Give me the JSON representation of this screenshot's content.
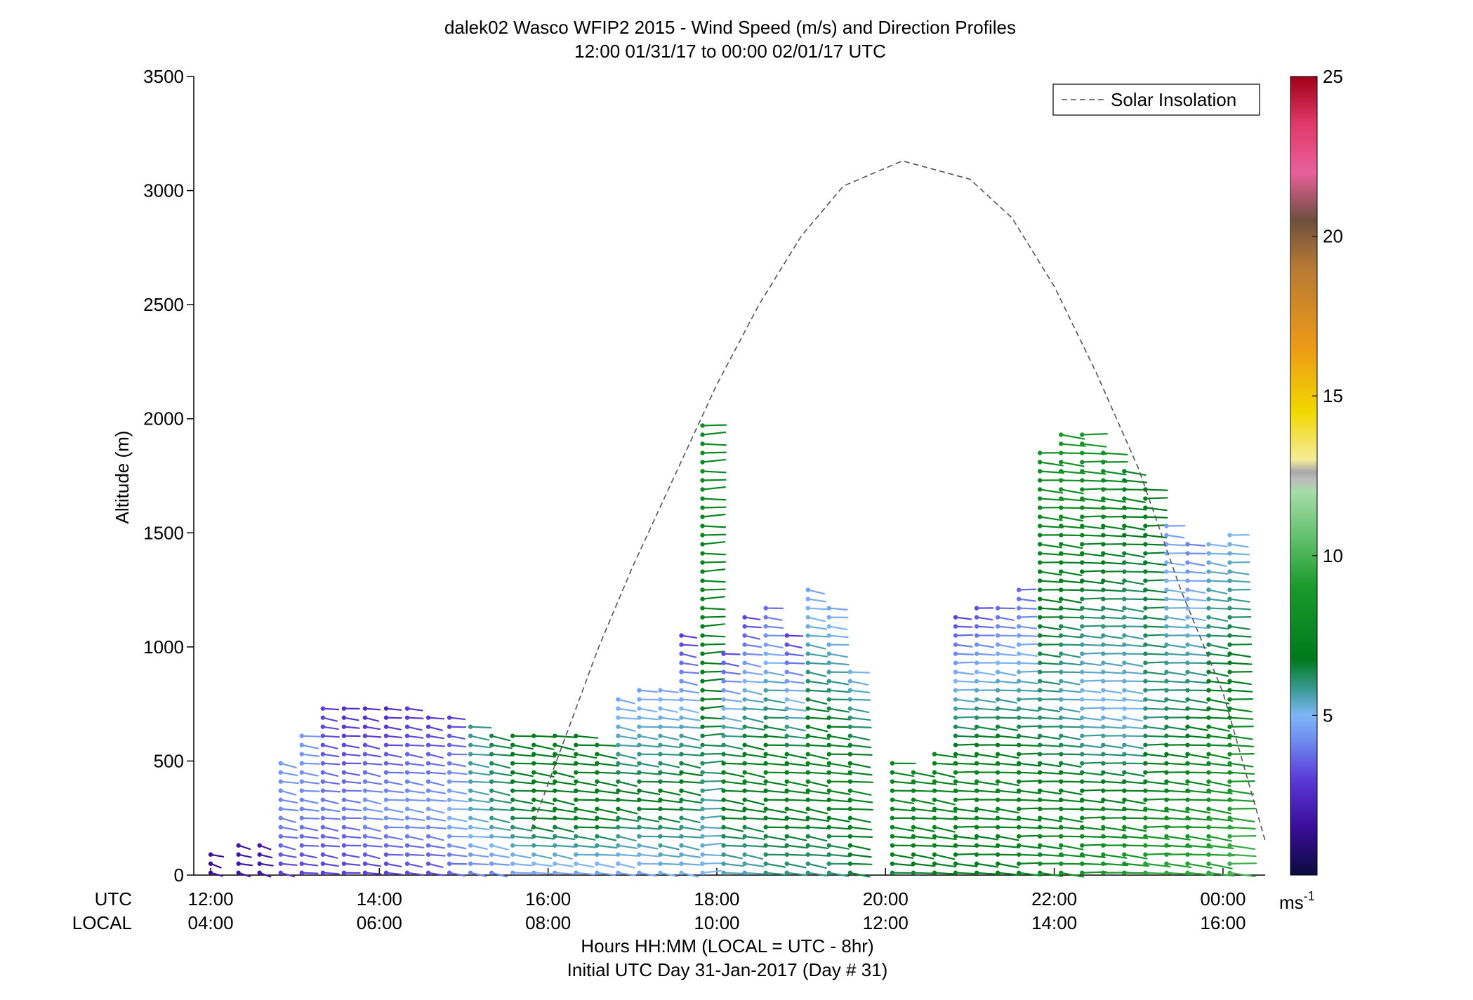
{
  "chart_data": {
    "type": "wind-barb-profile",
    "title": "dalek02 Wasco WFIP2 2015 - Wind Speed (m/s) and Direction Profiles",
    "subtitle": "12:00 01/31/17 to 00:00 02/01/17  UTC",
    "ylabel": "Altitude (m)",
    "xlabel": "Hours HH:MM  (LOCAL = UTC - 8hr)",
    "xlabel2": "Initial UTC Day 31-Jan-2017 (Day # 31)",
    "row_label_utc": "UTC",
    "row_label_local": "LOCAL",
    "ylim": [
      0,
      3500
    ],
    "xlim_hours": [
      11.8,
      24.5
    ],
    "y_ticks": [
      "0",
      "500",
      "1000",
      "1500",
      "2000",
      "2500",
      "3000",
      "3500"
    ],
    "x_ticks_utc": [
      "12:00",
      "14:00",
      "16:00",
      "18:00",
      "20:00",
      "22:00",
      "00:00"
    ],
    "x_ticks_local": [
      "04:00",
      "06:00",
      "08:00",
      "10:00",
      "12:00",
      "14:00",
      "16:00"
    ],
    "legend": {
      "label": "Solar Insolation",
      "placement": "top-right"
    },
    "colorbar": {
      "range": [
        0,
        25
      ],
      "ticks": [
        "5",
        "10",
        "15",
        "20",
        "25"
      ],
      "unit_label": "ms",
      "unit_exp": "-1"
    },
    "solar_insolation_curve": [
      [
        15.8,
        200
      ],
      [
        16.2,
        600
      ],
      [
        16.6,
        1000
      ],
      [
        17.0,
        1350
      ],
      [
        17.5,
        1750
      ],
      [
        18.0,
        2150
      ],
      [
        18.5,
        2500
      ],
      [
        19.0,
        2800
      ],
      [
        19.5,
        3020
      ],
      [
        20.2,
        3130
      ],
      [
        21.0,
        3050
      ],
      [
        21.5,
        2880
      ],
      [
        22.0,
        2580
      ],
      [
        22.5,
        2200
      ],
      [
        23.0,
        1780
      ],
      [
        23.5,
        1250
      ],
      [
        24.0,
        800
      ],
      [
        24.5,
        150
      ]
    ],
    "profiles": [
      {
        "t": 12.0,
        "top": 100,
        "low": 1.5,
        "mid": 1.5,
        "up": 1.5,
        "dir": 300
      },
      {
        "t": 12.33,
        "top": 130,
        "low": 1.8,
        "mid": 1.8,
        "up": 1.8,
        "dir": 300
      },
      {
        "t": 12.58,
        "top": 150,
        "low": 1.8,
        "mid": 1.8,
        "up": 1.8,
        "dir": 300
      },
      {
        "t": 12.83,
        "top": 520,
        "low": 3.0,
        "mid": 4.0,
        "up": 4.5,
        "dir": 290
      },
      {
        "t": 13.08,
        "top": 640,
        "low": 3.0,
        "mid": 4.0,
        "up": 4.5,
        "dir": 290
      },
      {
        "t": 13.33,
        "top": 740,
        "low": 3.0,
        "mid": 4.0,
        "up": 3.0,
        "dir": 290
      },
      {
        "t": 13.58,
        "top": 760,
        "low": 3.0,
        "mid": 4.0,
        "up": 2.5,
        "dir": 280
      },
      {
        "t": 13.83,
        "top": 740,
        "low": 3.0,
        "mid": 4.5,
        "up": 2.5,
        "dir": 285
      },
      {
        "t": 14.08,
        "top": 730,
        "low": 3.0,
        "mid": 4.5,
        "up": 2.5,
        "dir": 285
      },
      {
        "t": 14.33,
        "top": 740,
        "low": 3.2,
        "mid": 4.5,
        "up": 2.8,
        "dir": 285
      },
      {
        "t": 14.58,
        "top": 720,
        "low": 3.2,
        "mid": 4.5,
        "up": 2.8,
        "dir": 285
      },
      {
        "t": 14.83,
        "top": 700,
        "low": 3.5,
        "mid": 5.0,
        "up": 3.0,
        "dir": 285
      },
      {
        "t": 15.08,
        "top": 680,
        "low": 4.0,
        "mid": 5.5,
        "up": 6.0,
        "dir": 285
      },
      {
        "t": 15.33,
        "top": 640,
        "low": 4.0,
        "mid": 6.0,
        "up": 6.5,
        "dir": 285
      },
      {
        "t": 15.58,
        "top": 640,
        "low": 4.5,
        "mid": 6.5,
        "up": 7.0,
        "dir": 285
      },
      {
        "t": 15.83,
        "top": 620,
        "low": 4.5,
        "mid": 7.0,
        "up": 7.0,
        "dir": 285
      },
      {
        "t": 16.08,
        "top": 640,
        "low": 4.5,
        "mid": 7.0,
        "up": 7.0,
        "dir": 285
      },
      {
        "t": 16.33,
        "top": 620,
        "low": 4.5,
        "mid": 7.0,
        "up": 7.0,
        "dir": 285
      },
      {
        "t": 16.58,
        "top": 600,
        "low": 4.5,
        "mid": 7.0,
        "up": 7.0,
        "dir": 285
      },
      {
        "t": 16.83,
        "top": 800,
        "low": 4.5,
        "mid": 7.0,
        "up": 4.5,
        "dir": 285
      },
      {
        "t": 17.08,
        "top": 820,
        "low": 4.5,
        "mid": 7.0,
        "up": 4.5,
        "dir": 285
      },
      {
        "t": 17.33,
        "top": 840,
        "low": 5.0,
        "mid": 7.0,
        "up": 4.5,
        "dir": 285
      },
      {
        "t": 17.58,
        "top": 1050,
        "low": 5.0,
        "mid": 7.0,
        "up": 3.0,
        "dir": 285
      },
      {
        "t": 17.83,
        "top": 1980,
        "low": 5.0,
        "mid": 7.0,
        "up": 8.0,
        "dir": 270
      },
      {
        "t": 18.08,
        "top": 1000,
        "low": 5.5,
        "mid": 7.5,
        "up": 3.0,
        "dir": 285
      },
      {
        "t": 18.33,
        "top": 1150,
        "low": 5.5,
        "mid": 7.5,
        "up": 3.0,
        "dir": 285
      },
      {
        "t": 18.58,
        "top": 1200,
        "low": 6.0,
        "mid": 7.5,
        "up": 3.5,
        "dir": 285
      },
      {
        "t": 18.83,
        "top": 1050,
        "low": 6.0,
        "mid": 7.5,
        "up": 3.0,
        "dir": 285
      },
      {
        "t": 19.08,
        "top": 1280,
        "low": 6.0,
        "mid": 7.5,
        "up": 4.5,
        "dir": 285
      },
      {
        "t": 19.33,
        "top": 1200,
        "low": 6.0,
        "mid": 7.5,
        "up": 4.5,
        "dir": 285
      },
      {
        "t": 19.58,
        "top": 920,
        "low": 6.5,
        "mid": 7.5,
        "up": 5.0,
        "dir": 285
      },
      {
        "t": 20.08,
        "top": 500,
        "low": 6.5,
        "mid": 7.5,
        "up": 7.5,
        "dir": 285
      },
      {
        "t": 20.33,
        "top": 450,
        "low": 6.5,
        "mid": 7.5,
        "up": 7.5,
        "dir": 285
      },
      {
        "t": 20.58,
        "top": 560,
        "low": 7.0,
        "mid": 7.5,
        "up": 7.5,
        "dir": 285
      },
      {
        "t": 20.83,
        "top": 1150,
        "low": 7.0,
        "mid": 7.5,
        "up": 3.0,
        "dir": 280
      },
      {
        "t": 21.08,
        "top": 1200,
        "low": 7.0,
        "mid": 7.5,
        "up": 3.0,
        "dir": 280
      },
      {
        "t": 21.33,
        "top": 1200,
        "low": 7.0,
        "mid": 7.5,
        "up": 3.5,
        "dir": 280
      },
      {
        "t": 21.58,
        "top": 1280,
        "low": 7.5,
        "mid": 7.0,
        "up": 3.5,
        "dir": 280
      },
      {
        "t": 21.83,
        "top": 1880,
        "low": 8.0,
        "mid": 6.0,
        "up": 8.5,
        "dir": 280
      },
      {
        "t": 22.08,
        "top": 1960,
        "low": 8.5,
        "mid": 5.5,
        "up": 9.0,
        "dir": 280
      },
      {
        "t": 22.33,
        "top": 1950,
        "low": 8.5,
        "mid": 5.0,
        "up": 9.0,
        "dir": 280
      },
      {
        "t": 22.58,
        "top": 1880,
        "low": 9.0,
        "mid": 5.0,
        "up": 8.5,
        "dir": 280
      },
      {
        "t": 22.83,
        "top": 1780,
        "low": 9.0,
        "mid": 5.0,
        "up": 7.5,
        "dir": 280
      },
      {
        "t": 23.08,
        "top": 1700,
        "low": 9.5,
        "mid": 6.0,
        "up": 7.0,
        "dir": 280
      },
      {
        "t": 23.33,
        "top": 1550,
        "low": 9.5,
        "mid": 6.5,
        "up": 4.5,
        "dir": 280
      },
      {
        "t": 23.58,
        "top": 1450,
        "low": 9.5,
        "mid": 7.0,
        "up": 4.0,
        "dir": 280
      },
      {
        "t": 23.83,
        "top": 1480,
        "low": 9.5,
        "mid": 7.5,
        "up": 5.0,
        "dir": 280
      },
      {
        "t": 24.08,
        "top": 1500,
        "low": 10.0,
        "mid": 8.0,
        "up": 5.0,
        "dir": 280
      }
    ]
  }
}
